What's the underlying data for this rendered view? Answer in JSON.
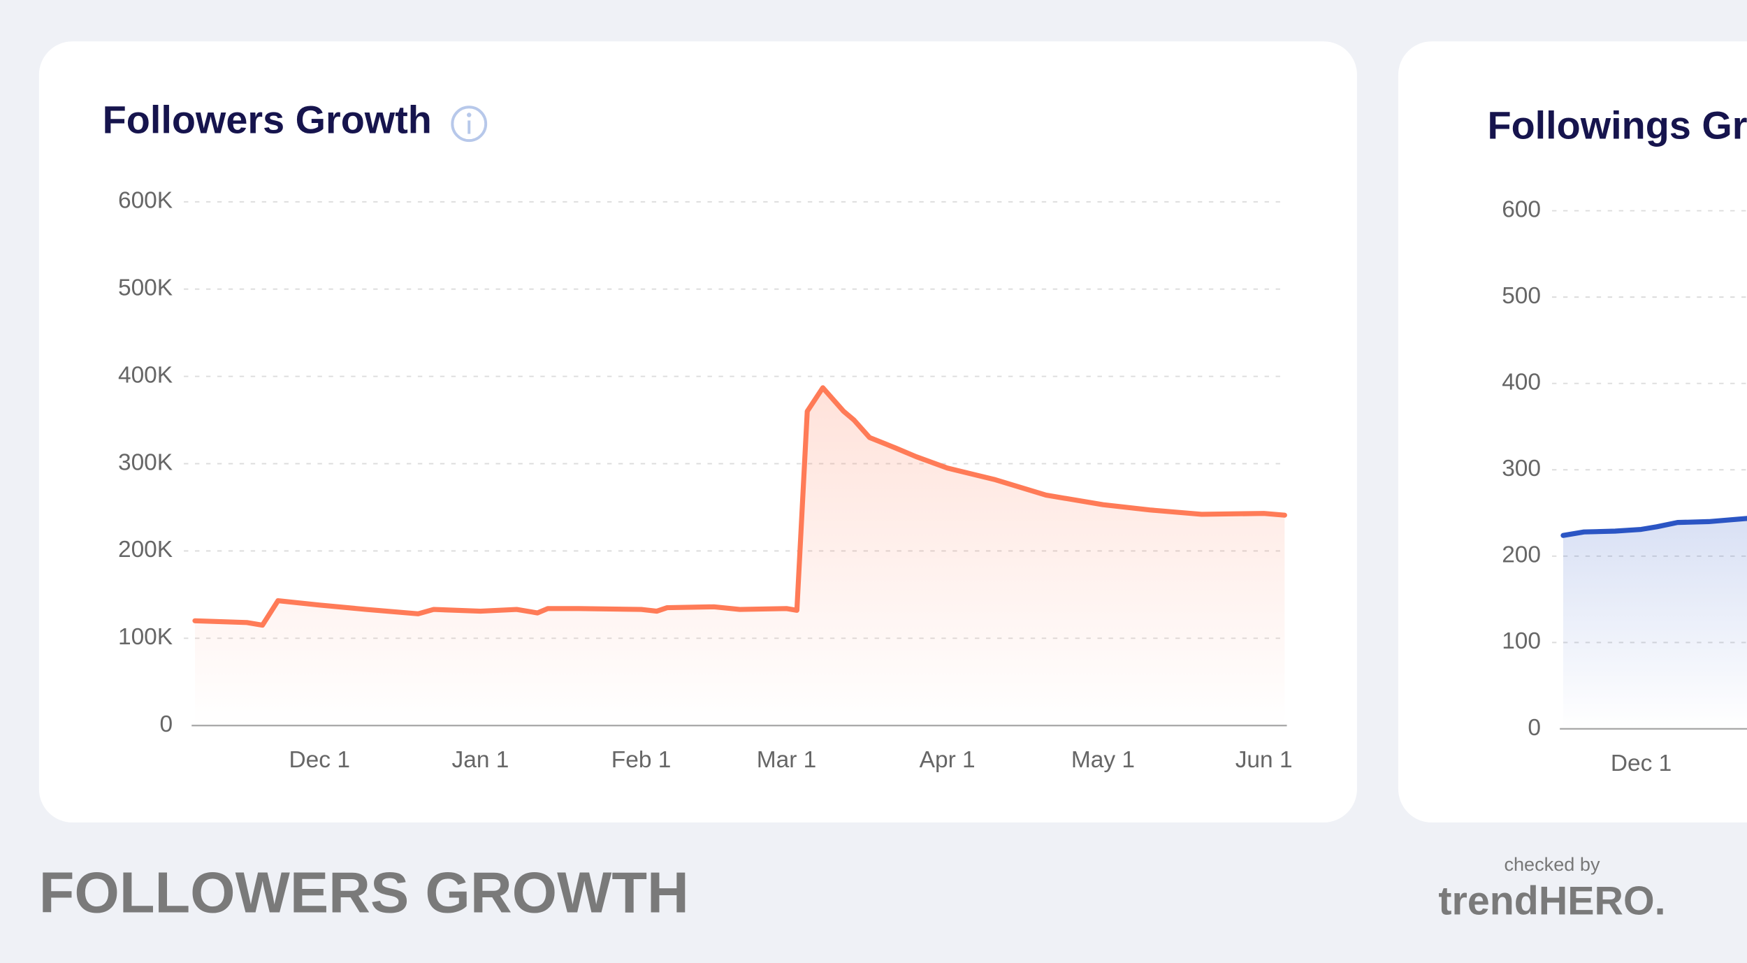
{
  "chart_data": [
    {
      "type": "line",
      "title": "Followers Growth",
      "color": "#ff7b57",
      "x": [
        "Nov 7",
        "Nov 17",
        "Nov 20",
        "Nov 23",
        "Dec 1",
        "Dec 10",
        "Dec 20",
        "Dec 23",
        "Jan 1",
        "Jan 8",
        "Jan 12",
        "Jan 14",
        "Jan 20",
        "Feb 1",
        "Feb 4",
        "Feb 6",
        "Feb 15",
        "Feb 20",
        "Mar 1",
        "Mar 3",
        "Mar 5",
        "Mar 8",
        "Mar 12",
        "Mar 14",
        "Mar 17",
        "Mar 22",
        "Mar 26",
        "Apr 1",
        "Apr 10",
        "Apr 20",
        "May 1",
        "May 10",
        "May 20",
        "Jun 1",
        "Jun 5"
      ],
      "values": [
        120000,
        118000,
        115000,
        143000,
        138000,
        133000,
        128000,
        133000,
        131000,
        133000,
        129000,
        134000,
        134000,
        133000,
        131000,
        135000,
        136000,
        133000,
        134000,
        132000,
        360000,
        387000,
        360000,
        350000,
        330000,
        318000,
        308000,
        295000,
        282000,
        264000,
        253000,
        247000,
        242000,
        243000,
        241000
      ],
      "xlim": [
        "Nov 7",
        "Jun 5"
      ],
      "xticks": [
        "Dec 1",
        "Jan 1",
        "Feb 1",
        "Mar 1",
        "Apr 1",
        "May 1",
        "Jun 1"
      ],
      "ylim": [
        0,
        600000
      ],
      "yticks": [
        0,
        {
          "value": 100000,
          "label": "100K"
        },
        {
          "value": 200000,
          "label": "200K"
        },
        {
          "value": 300000,
          "label": "300K"
        },
        {
          "value": 400000,
          "label": "400K"
        },
        {
          "value": 500000,
          "label": "500K"
        },
        {
          "value": 600000,
          "label": "600K"
        }
      ],
      "grid": true
    },
    {
      "type": "line",
      "title": "Followings Gr",
      "color": "#2b55c4",
      "x": [
        "Nov 16",
        "Nov 20",
        "Nov 26",
        "Dec 1",
        "Dec 4",
        "Dec 8",
        "Dec 14",
        "Dec 18",
        "Dec 22"
      ],
      "values": [
        224,
        228,
        229,
        231,
        234,
        239,
        240,
        242,
        244
      ],
      "xlim": [
        "Nov 16",
        "Dec 22"
      ],
      "xticks": [
        "Dec 1"
      ],
      "ylim": [
        0,
        600
      ],
      "yticks": [
        0,
        100,
        200,
        300,
        400,
        500,
        600
      ],
      "grid": true
    }
  ],
  "caption": "FOLLOWERS GROWTH",
  "branding": {
    "checked_by": "checked by",
    "logo": "trendHERO."
  }
}
